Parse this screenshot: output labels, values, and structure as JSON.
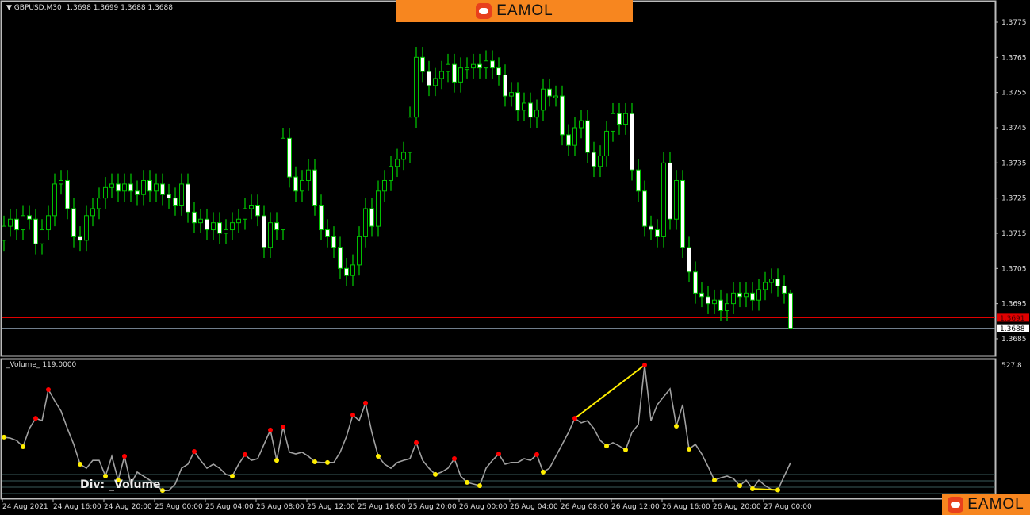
{
  "header": {
    "symbol": "GBPUSD,M30",
    "ohlc_text": "1.3698 1.3699 1.3688 1.3688"
  },
  "logo": {
    "text": "EAMOL",
    "color": "#f7861f"
  },
  "volume_panel": {
    "label": "_Volume_ 119.0000",
    "div_label": "Div:  _Volume_",
    "max_label": "527.8"
  },
  "colors": {
    "bull": "#00c000",
    "bear": "#ffffff",
    "line": "#a0a0a0",
    "peak": "#ff0000",
    "trough": "#ffee00",
    "divergence": "#ffee00",
    "bid_line": "#e00000",
    "last_line": "#8090a0"
  },
  "chart_data": [
    {
      "type": "candlestick",
      "title": "GBPUSD,M30",
      "ylim": [
        1.3682,
        1.378
      ],
      "y_ticks": [
        "1.3775",
        "1.3765",
        "1.3755",
        "1.3745",
        "1.3735",
        "1.3725",
        "1.3715",
        "1.3705",
        "1.3695",
        "1.3685"
      ],
      "x_ticks": [
        "24 Aug 2021",
        "24 Aug 16:00",
        "24 Aug 20:00",
        "25 Aug 00:00",
        "25 Aug 04:00",
        "25 Aug 08:00",
        "25 Aug 12:00",
        "25 Aug 16:00",
        "25 Aug 20:00",
        "26 Aug 00:00",
        "26 Aug 04:00",
        "26 Aug 08:00",
        "26 Aug 12:00",
        "26 Aug 16:00",
        "26 Aug 20:00",
        "27 Aug 00:00"
      ],
      "first_open": 1.3713,
      "close": [
        1.3717,
        1.3719,
        1.3716,
        1.372,
        1.3719,
        1.3712,
        1.3716,
        1.372,
        1.3729,
        1.373,
        1.3722,
        1.3714,
        1.3713,
        1.372,
        1.3722,
        1.3725,
        1.3728,
        1.3729,
        1.3727,
        1.3729,
        1.3727,
        1.3726,
        1.373,
        1.3727,
        1.3729,
        1.3726,
        1.3725,
        1.3723,
        1.3729,
        1.3721,
        1.3718,
        1.3719,
        1.3716,
        1.3718,
        1.3715,
        1.3716,
        1.3718,
        1.3719,
        1.3722,
        1.3723,
        1.372,
        1.3711,
        1.3718,
        1.3716,
        1.3742,
        1.3731,
        1.3727,
        1.373,
        1.3733,
        1.3723,
        1.3716,
        1.3714,
        1.3711,
        1.3705,
        1.3703,
        1.3706,
        1.3714,
        1.3722,
        1.3717,
        1.3727,
        1.373,
        1.3734,
        1.3736,
        1.3738,
        1.3748,
        1.3765,
        1.3761,
        1.3757,
        1.3759,
        1.3761,
        1.3763,
        1.3758,
        1.3762,
        1.3762,
        1.3763,
        1.3762,
        1.3764,
        1.3762,
        1.376,
        1.3754,
        1.3755,
        1.375,
        1.3752,
        1.3748,
        1.375,
        1.3756,
        1.3754,
        1.3754,
        1.3743,
        1.374,
        1.3745,
        1.3747,
        1.3738,
        1.3734,
        1.3737,
        1.3744,
        1.3749,
        1.3746,
        1.3749,
        1.3733,
        1.3727,
        1.3717,
        1.3716,
        1.3714,
        1.3735,
        1.3719,
        1.373,
        1.3711,
        1.3704,
        1.3698,
        1.3697,
        1.3695,
        1.3696,
        1.3693,
        1.3695,
        1.3698,
        1.3697,
        1.3698,
        1.3696,
        1.3699,
        1.3701,
        1.3702,
        1.37,
        1.3698,
        1.3688
      ],
      "last_candle": {
        "open": 1.3698,
        "high": 1.3699,
        "low": 1.3688,
        "close": 1.3688
      },
      "hlines": [
        {
          "value": 1.3691,
          "label": "1.3691",
          "color": "#e00000"
        },
        {
          "value": 1.3688,
          "label": "1.3688",
          "color": "#8090a0"
        }
      ]
    },
    {
      "type": "line",
      "title": "_Volume_",
      "ylim": [
        0,
        527.8
      ],
      "values": [
        226,
        222,
        212,
        186,
        262,
        305,
        295,
        425,
        378,
        335,
        262,
        196,
        113,
        96,
        129,
        129,
        63,
        146,
        46,
        146,
        30,
        80,
        63,
        46,
        23,
        3,
        3,
        30,
        96,
        113,
        166,
        129,
        96,
        113,
        96,
        70,
        63,
        113,
        153,
        129,
        136,
        196,
        256,
        129,
        269,
        163,
        156,
        163,
        146,
        123,
        120,
        120,
        120,
        163,
        229,
        319,
        295,
        369,
        246,
        146,
        113,
        96,
        120,
        129,
        136,
        203,
        129,
        96,
        70,
        80,
        96,
        136,
        63,
        37,
        30,
        23,
        96,
        129,
        156,
        113,
        120,
        120,
        136,
        129,
        153,
        80,
        96,
        146,
        196,
        246,
        305,
        286,
        295,
        262,
        212,
        189,
        203,
        189,
        173,
        246,
        279,
        527.8,
        295,
        362,
        395,
        428,
        272,
        362,
        176,
        196,
        156,
        103,
        46,
        56,
        63,
        53,
        23,
        46,
        10,
        46,
        23,
        7,
        5,
        63,
        119
      ],
      "peaks": [
        5,
        7,
        19,
        30,
        38,
        42,
        44,
        55,
        57,
        65,
        71,
        78,
        84,
        90,
        101
      ],
      "troughs": [
        0,
        3,
        12,
        16,
        18,
        25,
        36,
        43,
        49,
        51,
        59,
        68,
        73,
        75,
        85,
        95,
        98,
        106,
        108,
        112,
        116,
        118,
        122
      ],
      "divergence_lines": [
        [
          90,
          101
        ],
        [
          118,
          122
        ]
      ],
      "current_value": 119
    }
  ]
}
